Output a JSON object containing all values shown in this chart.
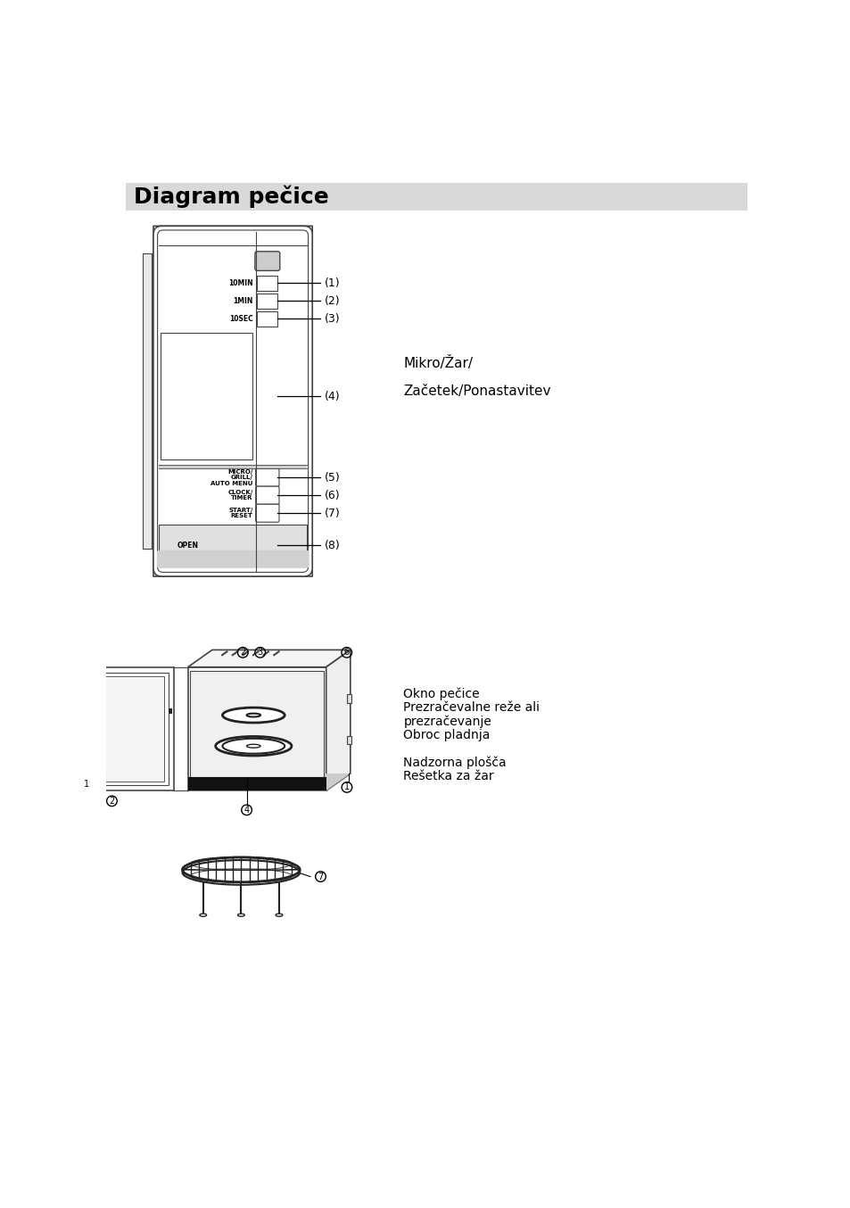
{
  "title": "Diagram pečice",
  "title_bg": "#d9d9d9",
  "bg_color": "#ffffff",
  "right_text_line1": "Mikro/Žar/",
  "right_text_line2": "Začetek/Ponastavitev",
  "bottom_right_line1": "Okno pečice",
  "bottom_right_line2": "Prezračevalne reže ali",
  "bottom_right_line3": "prezračevanje",
  "bottom_right_line4": "Obroc pladnja",
  "bottom_right_line5": "Nadzorna plošča",
  "bottom_right_line6": "Rešetka za žar",
  "gray": "#444444",
  "light_gray": "#aaaaaa"
}
